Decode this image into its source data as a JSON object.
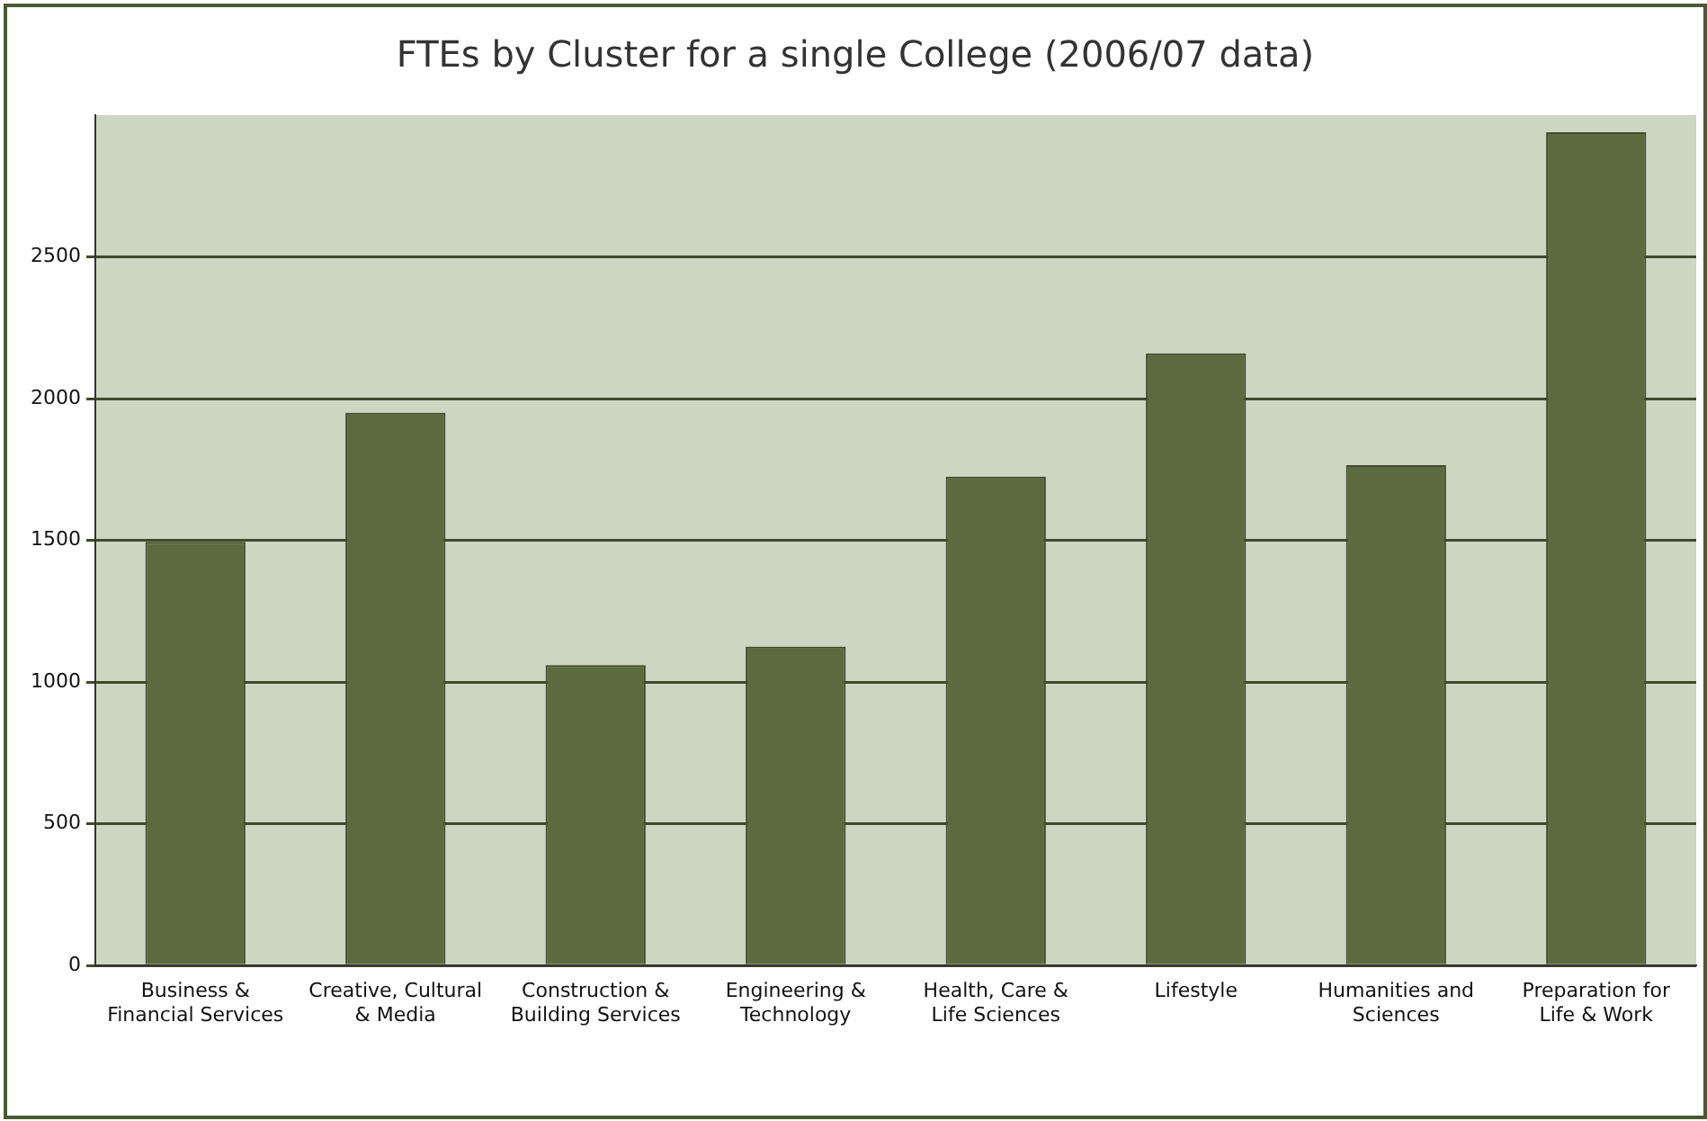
{
  "chart_data": {
    "type": "bar",
    "title": "FTEs by Cluster for a single College (2006/07 data)",
    "categories": [
      "Business & Financial Services",
      "Creative, Cultural & Media",
      "Construction & Building Services",
      "Engineering & Technology",
      "Health, Care & Life Sciences",
      "Lifestyle",
      "Humanities and Sciences",
      "Preparation for Life & Work"
    ],
    "values": [
      1495,
      1950,
      1060,
      1125,
      1725,
      2160,
      1765,
      2940
    ],
    "color": "#5b6b3f",
    "ylim": [
      0,
      3000
    ],
    "yticks": [
      0,
      500,
      1000,
      1500,
      2000,
      2500
    ],
    "grid": "y",
    "legend": false
  }
}
